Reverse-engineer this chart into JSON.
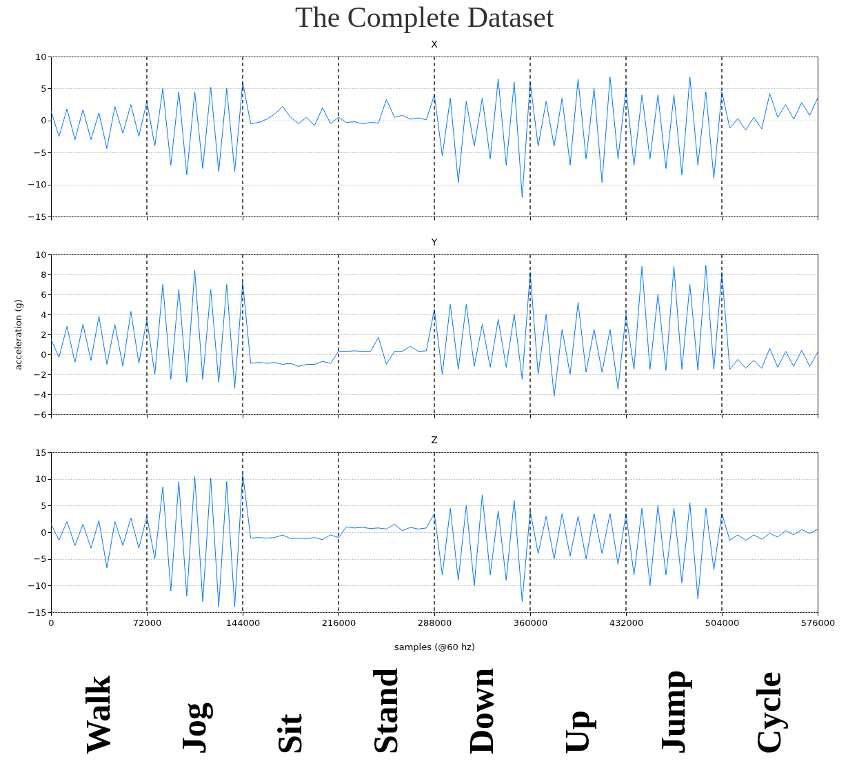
{
  "chart_data": [
    {
      "type": "line",
      "title": "X",
      "annotations": [
        "The Complete Dataset"
      ],
      "xlim": [
        0,
        576000
      ],
      "xticks": [
        0,
        72000,
        144000,
        216000,
        288000,
        360000,
        432000,
        504000,
        576000
      ],
      "ylim": [
        -15,
        10
      ],
      "yticks": [
        -15,
        -10,
        -5,
        0,
        5,
        10
      ],
      "grid": "y",
      "tick_labels": "y",
      "line_style": "solid",
      "x": [
        0,
        6000,
        12000,
        18000,
        24000,
        30000,
        36000,
        42000,
        48000,
        54000,
        60000,
        66000,
        72000,
        78000,
        84000,
        90000,
        96000,
        102000,
        108000,
        114000,
        120000,
        126000,
        132000,
        138000,
        144000,
        150000,
        156000,
        162000,
        168000,
        174000,
        180000,
        186000,
        192000,
        198000,
        204000,
        210000,
        216000,
        222000,
        228000,
        234000,
        240000,
        246000,
        252000,
        258000,
        264000,
        270000,
        276000,
        282000,
        288000,
        294000,
        300000,
        306000,
        312000,
        318000,
        324000,
        330000,
        336000,
        342000,
        348000,
        354000,
        360000,
        366000,
        372000,
        378000,
        384000,
        390000,
        396000,
        402000,
        408000,
        414000,
        420000,
        426000,
        432000,
        438000,
        444000,
        450000,
        456000,
        462000,
        468000,
        474000,
        480000,
        486000,
        492000,
        498000,
        504000,
        510000,
        516000,
        522000,
        528000,
        534000,
        540000,
        546000,
        552000,
        558000,
        564000,
        570000,
        576000
      ],
      "ref_lines": [
        {
          "axis": "x",
          "value": 72000,
          "line_style": "dashed",
          "color": "#000000"
        },
        {
          "axis": "x",
          "value": 144000,
          "line_style": "dashed",
          "color": "#000000"
        },
        {
          "axis": "x",
          "value": 216000,
          "line_style": "dashed",
          "color": "#000000"
        },
        {
          "axis": "x",
          "value": 288000,
          "line_style": "dashed",
          "color": "#000000"
        },
        {
          "axis": "x",
          "value": 360000,
          "line_style": "dashed",
          "color": "#000000"
        },
        {
          "axis": "x",
          "value": 432000,
          "line_style": "dashed",
          "color": "#000000"
        },
        {
          "axis": "x",
          "value": 504000,
          "line_style": "dashed",
          "color": "#000000"
        }
      ],
      "series": [
        {
          "color": "#0077ff",
          "values": [
            1.5,
            -2.5,
            1.8,
            -3,
            1.7,
            -3,
            1.2,
            -4.4,
            2.2,
            -2,
            2.5,
            -2.5,
            3,
            -4,
            5,
            -7,
            4.5,
            -8.5,
            4.5,
            -7.5,
            5.2,
            -8,
            5,
            -8,
            6,
            -0.5,
            -0.3,
            0.2,
            1,
            2.2,
            0.5,
            -0.5,
            0.5,
            -0.8,
            2,
            -0.5,
            0.5,
            -0.3,
            -0.2,
            -0.5,
            -0.3,
            -0.4,
            3.3,
            0.5,
            0.8,
            0.2,
            0.4,
            0.1,
            4,
            -5.5,
            3.5,
            -9.7,
            3,
            -4,
            3.5,
            -6,
            6.5,
            -7,
            6,
            -12,
            6,
            -4,
            3,
            -4,
            3.5,
            -7,
            6.5,
            -6,
            5,
            -9.7,
            6.8,
            -6,
            5,
            -7,
            4,
            -6,
            4,
            -7.5,
            4,
            -8.5,
            6.8,
            -7,
            4.5,
            -9,
            4.5,
            -1.2,
            0.3,
            -1.5,
            0.5,
            -1.3,
            4.2,
            0.5,
            2.5,
            0.2,
            2.8,
            0.8,
            3.5
          ]
        }
      ]
    },
    {
      "type": "line",
      "title": "Y",
      "ylabel": "acceleration (g)",
      "xlim": [
        0,
        576000
      ],
      "xticks": [
        0,
        72000,
        144000,
        216000,
        288000,
        360000,
        432000,
        504000,
        576000
      ],
      "ylim": [
        -6,
        10
      ],
      "yticks": [
        -6,
        -4,
        -2,
        0,
        2,
        4,
        6,
        8,
        10
      ],
      "grid": "y",
      "tick_labels": "y",
      "line_style": "solid",
      "x": [
        0,
        6000,
        12000,
        18000,
        24000,
        30000,
        36000,
        42000,
        48000,
        54000,
        60000,
        66000,
        72000,
        78000,
        84000,
        90000,
        96000,
        102000,
        108000,
        114000,
        120000,
        126000,
        132000,
        138000,
        144000,
        150000,
        156000,
        162000,
        168000,
        174000,
        180000,
        186000,
        192000,
        198000,
        204000,
        210000,
        216000,
        222000,
        228000,
        234000,
        240000,
        246000,
        252000,
        258000,
        264000,
        270000,
        276000,
        282000,
        288000,
        294000,
        300000,
        306000,
        312000,
        318000,
        324000,
        330000,
        336000,
        342000,
        348000,
        354000,
        360000,
        366000,
        372000,
        378000,
        384000,
        390000,
        396000,
        402000,
        408000,
        414000,
        420000,
        426000,
        432000,
        438000,
        444000,
        450000,
        456000,
        462000,
        468000,
        474000,
        480000,
        486000,
        492000,
        498000,
        504000,
        510000,
        516000,
        522000,
        528000,
        534000,
        540000,
        546000,
        552000,
        558000,
        564000,
        570000,
        576000
      ],
      "ref_lines": [
        {
          "axis": "x",
          "value": 72000,
          "line_style": "dashed",
          "color": "#000000"
        },
        {
          "axis": "x",
          "value": 144000,
          "line_style": "dashed",
          "color": "#000000"
        },
        {
          "axis": "x",
          "value": 216000,
          "line_style": "dashed",
          "color": "#000000"
        },
        {
          "axis": "x",
          "value": 288000,
          "line_style": "dashed",
          "color": "#000000"
        },
        {
          "axis": "x",
          "value": 360000,
          "line_style": "dashed",
          "color": "#000000"
        },
        {
          "axis": "x",
          "value": 432000,
          "line_style": "dashed",
          "color": "#000000"
        },
        {
          "axis": "x",
          "value": 504000,
          "line_style": "dashed",
          "color": "#000000"
        }
      ],
      "series": [
        {
          "color": "#0077ff",
          "values": [
            1.5,
            -0.3,
            2.8,
            -0.8,
            3,
            -0.6,
            3.8,
            -1,
            3,
            -1.2,
            4.3,
            -0.9,
            3.5,
            -2,
            7,
            -2.5,
            6.5,
            -2.8,
            8.4,
            -2.5,
            6.5,
            -2.8,
            7,
            -3.4,
            7.2,
            -0.9,
            -0.8,
            -0.9,
            -0.8,
            -1,
            -0.9,
            -1.2,
            -1,
            -1,
            -0.7,
            -0.9,
            0.3,
            0.3,
            0.35,
            0.3,
            0.3,
            1.7,
            -1,
            0.3,
            0.3,
            0.8,
            0.3,
            0.35,
            4.5,
            -2,
            5,
            -1.5,
            5,
            -1.2,
            3,
            -1.3,
            3.5,
            -1.3,
            4,
            -2.5,
            8.2,
            -2,
            4,
            -4.2,
            2.5,
            -2,
            5.2,
            -1.8,
            2.5,
            -1.8,
            2.5,
            -3.5,
            4,
            -1.5,
            8.8,
            -1.5,
            6,
            -1.6,
            8.8,
            -1.5,
            7,
            -1.6,
            8.9,
            -1.5,
            8.2,
            -1.5,
            -0.5,
            -1.4,
            -0.6,
            -1.4,
            0.6,
            -1.3,
            0.3,
            -1.2,
            0.4,
            -1.2,
            0.2
          ]
        }
      ]
    },
    {
      "type": "line",
      "title": "Z",
      "xlabel": "samples (@60 hz)",
      "annotations": [
        "Walk",
        "Jog",
        "Sit",
        "Stand",
        "Down",
        "Up",
        "Jump",
        "Cycle"
      ],
      "xlim": [
        0,
        576000
      ],
      "xticks": [
        0,
        72000,
        144000,
        216000,
        288000,
        360000,
        432000,
        504000,
        576000
      ],
      "ylim": [
        -15,
        15
      ],
      "yticks": [
        -15,
        -10,
        -5,
        0,
        5,
        10,
        15
      ],
      "grid": "y",
      "line_style": "solid",
      "x": [
        0,
        6000,
        12000,
        18000,
        24000,
        30000,
        36000,
        42000,
        48000,
        54000,
        60000,
        66000,
        72000,
        78000,
        84000,
        90000,
        96000,
        102000,
        108000,
        114000,
        120000,
        126000,
        132000,
        138000,
        144000,
        150000,
        156000,
        162000,
        168000,
        174000,
        180000,
        186000,
        192000,
        198000,
        204000,
        210000,
        216000,
        222000,
        228000,
        234000,
        240000,
        246000,
        252000,
        258000,
        264000,
        270000,
        276000,
        282000,
        288000,
        294000,
        300000,
        306000,
        312000,
        318000,
        324000,
        330000,
        336000,
        342000,
        348000,
        354000,
        360000,
        366000,
        372000,
        378000,
        384000,
        390000,
        396000,
        402000,
        408000,
        414000,
        420000,
        426000,
        432000,
        438000,
        444000,
        450000,
        456000,
        462000,
        468000,
        474000,
        480000,
        486000,
        492000,
        498000,
        504000,
        510000,
        516000,
        522000,
        528000,
        534000,
        540000,
        546000,
        552000,
        558000,
        564000,
        570000,
        576000
      ],
      "ref_lines": [
        {
          "axis": "x",
          "value": 72000,
          "line_style": "dashed",
          "color": "#000000"
        },
        {
          "axis": "x",
          "value": 144000,
          "line_style": "dashed",
          "color": "#000000"
        },
        {
          "axis": "x",
          "value": 216000,
          "line_style": "dashed",
          "color": "#000000"
        },
        {
          "axis": "x",
          "value": 288000,
          "line_style": "dashed",
          "color": "#000000"
        },
        {
          "axis": "x",
          "value": 360000,
          "line_style": "dashed",
          "color": "#000000"
        },
        {
          "axis": "x",
          "value": 432000,
          "line_style": "dashed",
          "color": "#000000"
        },
        {
          "axis": "x",
          "value": 504000,
          "line_style": "dashed",
          "color": "#000000"
        }
      ],
      "series": [
        {
          "color": "#0077ff",
          "values": [
            1.5,
            -1.5,
            2,
            -2.5,
            1.5,
            -3,
            2.2,
            -6.7,
            2,
            -2.5,
            2.7,
            -3,
            3,
            -5,
            8.5,
            -11,
            9.5,
            -12,
            10.5,
            -13,
            10.2,
            -14,
            9.5,
            -14,
            11,
            -1.1,
            -1,
            -1.1,
            -1,
            -0.5,
            -1.2,
            -1.1,
            -1.2,
            -1,
            -1.4,
            -0.5,
            -1,
            1,
            0.8,
            0.9,
            0.7,
            0.8,
            0.6,
            1.5,
            0.3,
            0.9,
            0.6,
            0.8,
            3.5,
            -8,
            4.5,
            -9,
            5,
            -10,
            7,
            -8,
            4,
            -9,
            6,
            -13,
            4,
            -4,
            3,
            -5,
            3.5,
            -4.5,
            3,
            -5,
            3.5,
            -4,
            3.5,
            -6,
            3.5,
            -8,
            4.5,
            -10,
            5,
            -8,
            4.5,
            -9.5,
            5.5,
            -12.5,
            4.5,
            -7,
            3.5,
            -1.5,
            -0.5,
            -1.5,
            -0.5,
            -1.3,
            -0.2,
            -0.9,
            0.3,
            -0.5,
            0.5,
            -0.2,
            0.5
          ]
        }
      ]
    }
  ]
}
